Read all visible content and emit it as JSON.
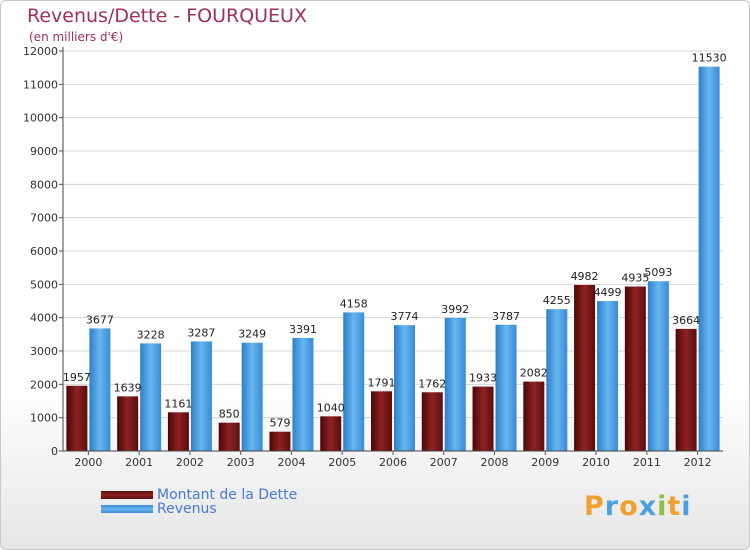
{
  "title": "Revenus/Dette - FOURQUEUX",
  "subtitle": "(en milliers d'€)",
  "chart_data": {
    "type": "bar",
    "title": "Revenus/Dette - FOURQUEUX",
    "ylabel": "(en milliers d'€)",
    "xlabel": "",
    "ylim": [
      0,
      12000
    ],
    "yticks": [
      0,
      1000,
      2000,
      3000,
      4000,
      5000,
      6000,
      7000,
      8000,
      9000,
      10000,
      11000,
      12000
    ],
    "grid": true,
    "legend_position": "bottom-left",
    "categories": [
      "2000",
      "2001",
      "2002",
      "2003",
      "2004",
      "2005",
      "2006",
      "2007",
      "2008",
      "2009",
      "2010",
      "2011",
      "2012"
    ],
    "series": [
      {
        "name": "Montant de la Dette",
        "color": "#7a1a1a",
        "values": [
          1957,
          1639,
          1161,
          850,
          579,
          1040,
          1791,
          1762,
          1933,
          2082,
          4982,
          4935,
          3664
        ],
        "labels": [
          "1957",
          "1639",
          "1161",
          "850",
          "579",
          "1040",
          "1791",
          "1762",
          "1933",
          "2082",
          "4982",
          "4935",
          "3664"
        ]
      },
      {
        "name": "Revenus",
        "color": "#4ea3e6",
        "values": [
          3677,
          3228,
          3287,
          3249,
          3391,
          4158,
          3774,
          3992,
          3787,
          4255,
          4499,
          5093,
          11530
        ],
        "labels": [
          "3677",
          "3228",
          "3287",
          "3249",
          "3391",
          "4158",
          "3774",
          "3992",
          "3787",
          "4255",
          "4499",
          "5093",
          "11530"
        ]
      }
    ]
  },
  "legend": {
    "items": [
      {
        "label": "Montant de la Dette",
        "color": "#7a1a1a"
      },
      {
        "label": "Revenus",
        "color": "#4ea3e6"
      }
    ]
  },
  "logo": {
    "letters": [
      "P",
      "r",
      "o",
      "x",
      "i",
      "t",
      "i"
    ],
    "colors": [
      "#f0a030",
      "#4aa0e0",
      "#f0a030",
      "#4aa0e0",
      "#8cc040",
      "#f0a030",
      "#4aa0e0"
    ]
  }
}
